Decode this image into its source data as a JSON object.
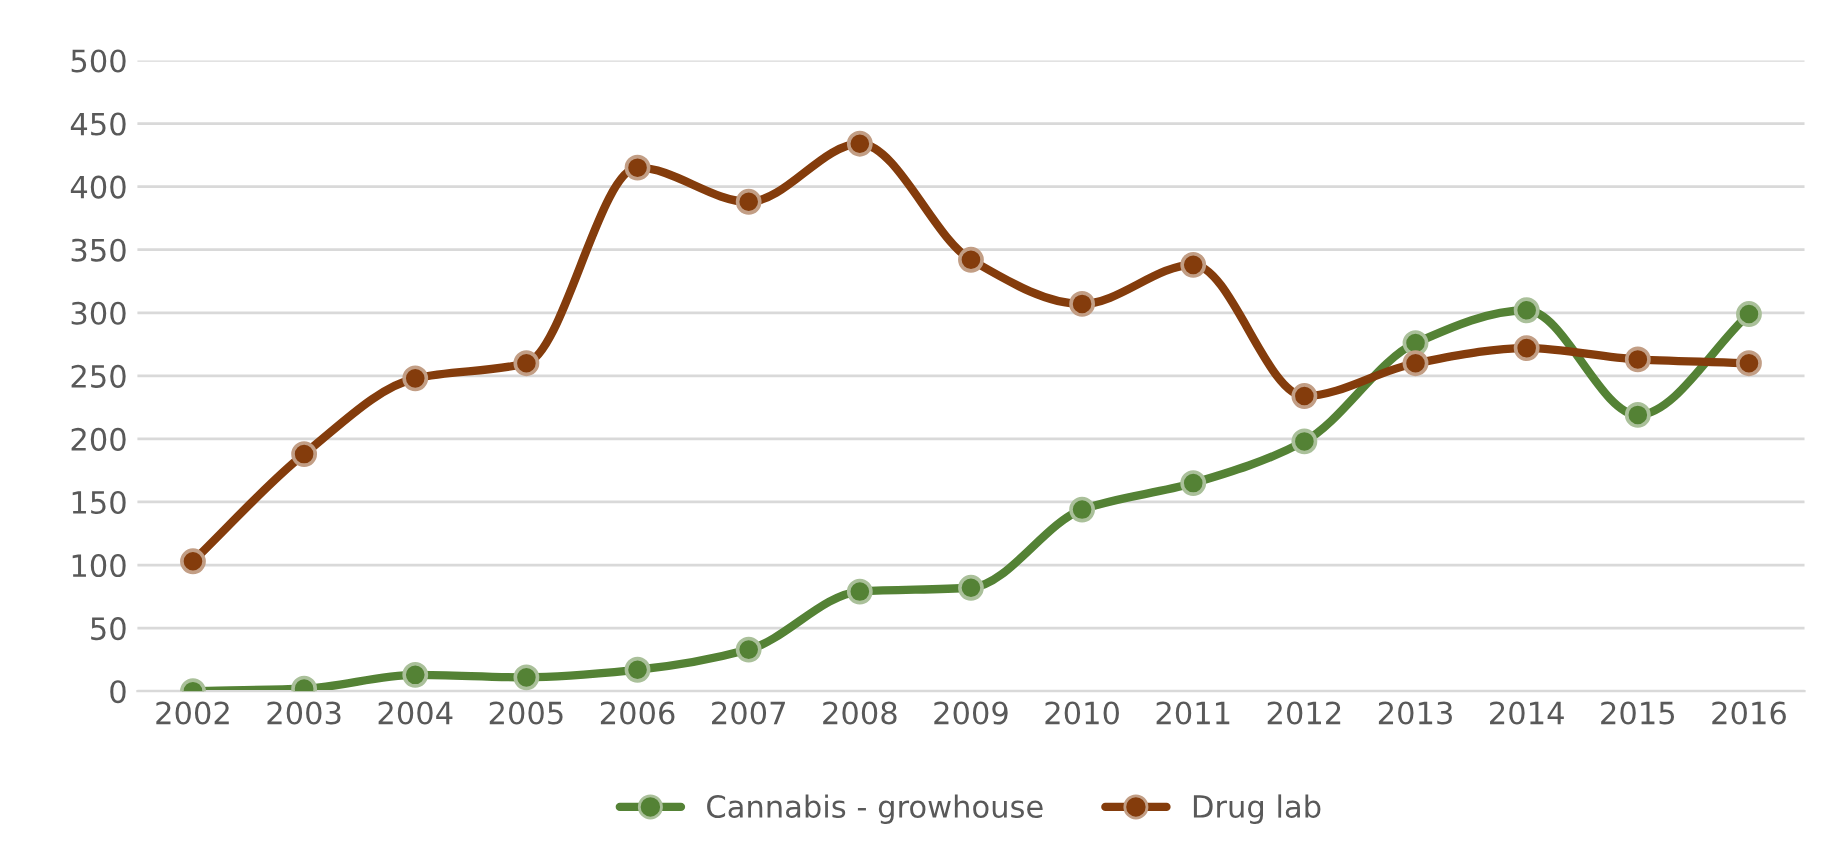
{
  "chart_data": {
    "type": "line",
    "categories": [
      "2002",
      "2003",
      "2004",
      "2005",
      "2006",
      "2007",
      "2008",
      "2009",
      "2010",
      "2011",
      "2012",
      "2013",
      "2014",
      "2015",
      "2016"
    ],
    "series": [
      {
        "name": "Cannabis - growhouse",
        "color": "#548235",
        "values": [
          0,
          2,
          13,
          11,
          17,
          33,
          79,
          82,
          144,
          165,
          198,
          276,
          302,
          219,
          299
        ]
      },
      {
        "name": "Drug lab",
        "color": "#843c0c",
        "values": [
          103,
          188,
          248,
          260,
          415,
          388,
          434,
          342,
          307,
          338,
          234,
          260,
          272,
          263,
          260
        ]
      }
    ],
    "ylim": [
      0,
      500
    ],
    "yticks": [
      0,
      50,
      100,
      150,
      200,
      250,
      300,
      350,
      400,
      450,
      500
    ],
    "grid": "y",
    "legend": "bottom",
    "marker": "circle",
    "line_style": "solid"
  }
}
